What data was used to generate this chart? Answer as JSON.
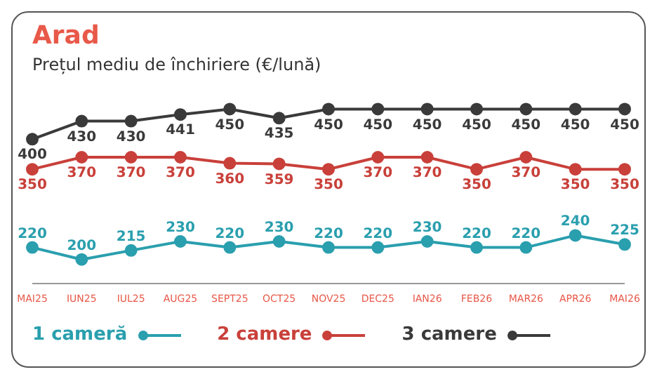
{
  "chart_data": {
    "type": "line",
    "title": "Arad",
    "subtitle": "Prețul mediu de închiriere (€/lună)",
    "categories": [
      "MAI25",
      "IUN25",
      "IUL25",
      "AUG25",
      "SEPT25",
      "OCT25",
      "NOV25",
      "DEC25",
      "IAN26",
      "FEB26",
      "MAR26",
      "APR26",
      "MAI26"
    ],
    "series": [
      {
        "name": "1 cameră",
        "color": "#2a9fae",
        "values": [
          220,
          200,
          215,
          230,
          220,
          230,
          220,
          220,
          230,
          220,
          220,
          240,
          225
        ]
      },
      {
        "name": "2 camere",
        "color": "#c9403a",
        "values": [
          350,
          370,
          370,
          370,
          360,
          359,
          350,
          370,
          370,
          350,
          370,
          350,
          350
        ]
      },
      {
        "name": "3 camere",
        "color": "#3a3a3a",
        "values": [
          400,
          430,
          430,
          441,
          450,
          435,
          450,
          450,
          450,
          450,
          450,
          450,
          450
        ]
      }
    ],
    "tick_labels": "x",
    "data_labels": true,
    "marker": "circle",
    "line_style": "solid",
    "legend": "bottom left"
  }
}
